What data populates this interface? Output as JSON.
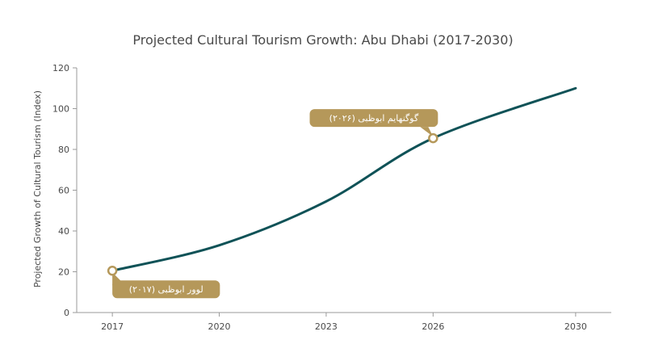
{
  "chart_data": {
    "type": "line",
    "title": "Projected Cultural Tourism Growth: Abu Dhabi (2017-2030)",
    "xlabel": "",
    "ylabel": "Projected Growth of Cultural Tourism (Index)",
    "x_ticks": [
      "2017",
      "2020",
      "2023",
      "2026",
      "2030"
    ],
    "y_ticks": [
      "0",
      "20",
      "40",
      "60",
      "80",
      "100",
      "120"
    ],
    "xlim": [
      2016,
      2031
    ],
    "ylim": [
      0,
      120
    ],
    "grid": false,
    "series": [
      {
        "x": [
          2017,
          2020,
          2023,
          2026,
          2030
        ],
        "y": [
          20.5,
          33,
          54.5,
          85.5,
          110
        ]
      }
    ],
    "annotations": [
      {
        "x": 2017,
        "y": 20.5,
        "text": "لوور ابوظبی (۲۰۱۷)",
        "position": "below-right"
      },
      {
        "x": 2026,
        "y": 85.5,
        "text": "گوگنهایم ابوظبی (۲۰۲۶)",
        "position": "above-left"
      }
    ],
    "colors": {
      "line": "#0f5257",
      "accent": "#b5985a",
      "axis": "#9a9a9a",
      "text": "#4a4a4a"
    }
  }
}
